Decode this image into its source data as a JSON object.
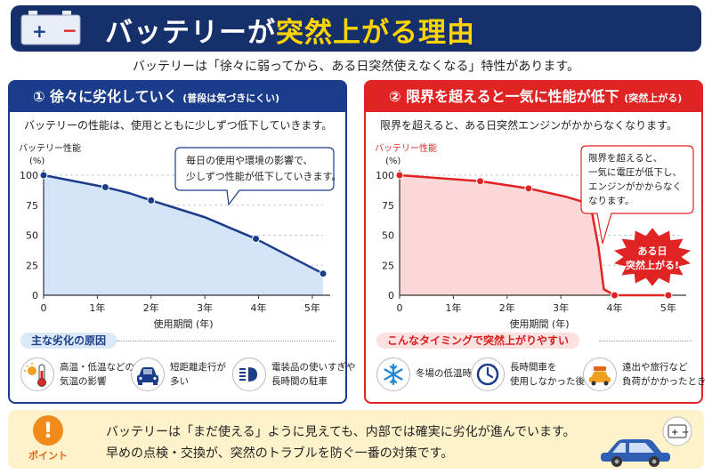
{
  "header": {
    "title_pre": "バッテリーが",
    "title_hl": "突然上がる理由",
    "subtitle": "バッテリーは「徐々に弱ってから、ある日突然使えなくなる」特性があります。",
    "accent": "#ffd400",
    "bg": "#15306b"
  },
  "left": {
    "heading": "① 徐々に劣化していく",
    "heading_note": "(普段は気づきにくい)",
    "description": "バッテリーの性能は、使用とともに少しずつ低下していきます。",
    "callout_line1": "毎日の使用や環境の影響で、",
    "callout_line2": "少しずつ性能が低下していきます。",
    "causes_title": "主な劣化の原因",
    "causes": [
      {
        "icon": "thermometer-icon",
        "line1": "高温・低温などの",
        "line2": "気温の影響"
      },
      {
        "icon": "car-front-icon",
        "line1": "短距離走行が",
        "line2": "多い"
      },
      {
        "icon": "headlight-icon",
        "line1": "電装品の使いすぎや",
        "line2": "長時間の駐車"
      }
    ],
    "color": "#1a3c8a"
  },
  "right": {
    "heading": "② 限界を超えると一気に性能が低下",
    "heading_note": "(突然上がる)",
    "description": "限界を超えると、ある日突然エンジンがかからなくなります。",
    "callout_line1": "限界を超えると、",
    "callout_line2": "一気に電圧が低下し、",
    "callout_line3": "エンジンがかからなく",
    "callout_line4": "なります。",
    "burst_line1": "ある日",
    "burst_line2": "突然上がる!",
    "causes_title": "こんなタイミングで突然上がりやすい",
    "causes": [
      {
        "icon": "snowflake-icon",
        "line1": "冬場の低温時",
        "line2": ""
      },
      {
        "icon": "clock-icon",
        "line1": "長時間車を",
        "line2": "使用しなかった後"
      },
      {
        "icon": "car-load-icon",
        "line1": "遠出や旅行など",
        "line2": "負荷がかかったとき"
      }
    ],
    "color": "#e02424"
  },
  "chart_data": [
    {
      "type": "line",
      "ylabel": "バッテリー性能",
      "yunit": "(%)",
      "xlabel": "使用期間 (年)",
      "xticks": [
        "0",
        "1年",
        "2年",
        "3年",
        "4年",
        "5年"
      ],
      "yticks": [
        "0",
        "25",
        "50",
        "75",
        "100"
      ],
      "xlim": [
        0,
        5.2
      ],
      "ylim": [
        0,
        100
      ],
      "series": [
        {
          "x": [
            0,
            1.15,
            1.6,
            2.0,
            3.0,
            3.95,
            5.2
          ],
          "y": [
            100,
            90,
            85,
            79,
            65,
            47,
            18
          ],
          "markers": [
            0,
            1.15,
            2.0,
            3.95,
            5.2
          ]
        }
      ],
      "color": "#1a3c8a"
    },
    {
      "type": "line",
      "ylabel": "バッテリー性能",
      "yunit": "(%)",
      "xlabel": "使用期間 (年)",
      "xticks": [
        "0",
        "1年",
        "2年",
        "3年",
        "4年",
        "5年"
      ],
      "yticks": [
        "0",
        "25",
        "50",
        "75",
        "100"
      ],
      "xlim": [
        0,
        5.2
      ],
      "ylim": [
        0,
        100
      ],
      "series": [
        {
          "x": [
            0,
            1.5,
            2.4,
            3.1,
            3.55,
            3.7,
            3.8,
            4.0,
            5.0
          ],
          "y": [
            100,
            95,
            89,
            82,
            76,
            40,
            5,
            0,
            0
          ],
          "markers": [
            0,
            1.5,
            2.4,
            3.55,
            4.0,
            5.0
          ]
        }
      ],
      "color": "#e02424"
    }
  ],
  "bottom": {
    "point_label": "ポイント",
    "line1": "バッテリーは「まだ使える」ように見えても、内部では確実に劣化が進んでいます。",
    "line2": "早めの点検・交換が、突然のトラブルを防ぐ一番の対策です。"
  }
}
